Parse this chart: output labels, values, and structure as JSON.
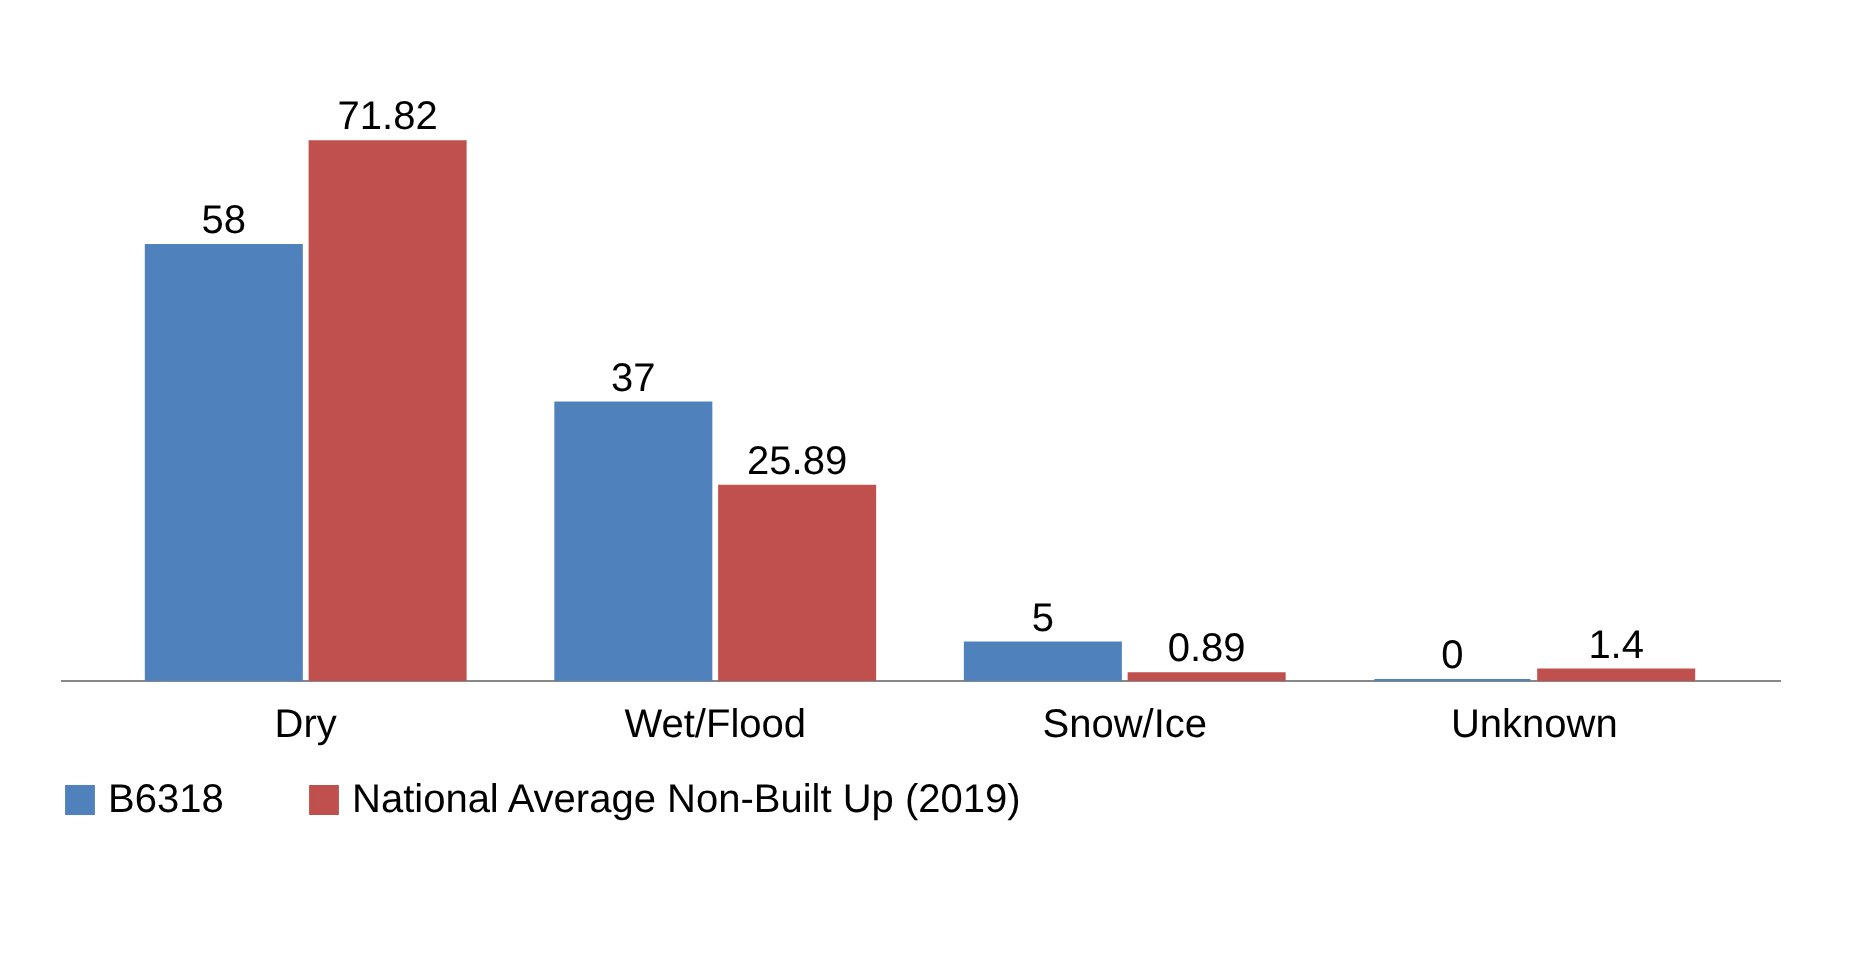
{
  "chart_data": {
    "type": "bar",
    "categories": [
      "Dry",
      "Wet/Flood",
      "Snow/Ice",
      "Unknown"
    ],
    "series": [
      {
        "name": "B6318",
        "color": "#4f81bd",
        "values": [
          58,
          37,
          5,
          0
        ]
      },
      {
        "name": "National Average Non-Built Up (2019)",
        "color": "#c0504d",
        "values": [
          71.82,
          25.89,
          0.89,
          1.4
        ]
      }
    ],
    "data_labels": true,
    "legend": "bottom",
    "grid": false
  }
}
